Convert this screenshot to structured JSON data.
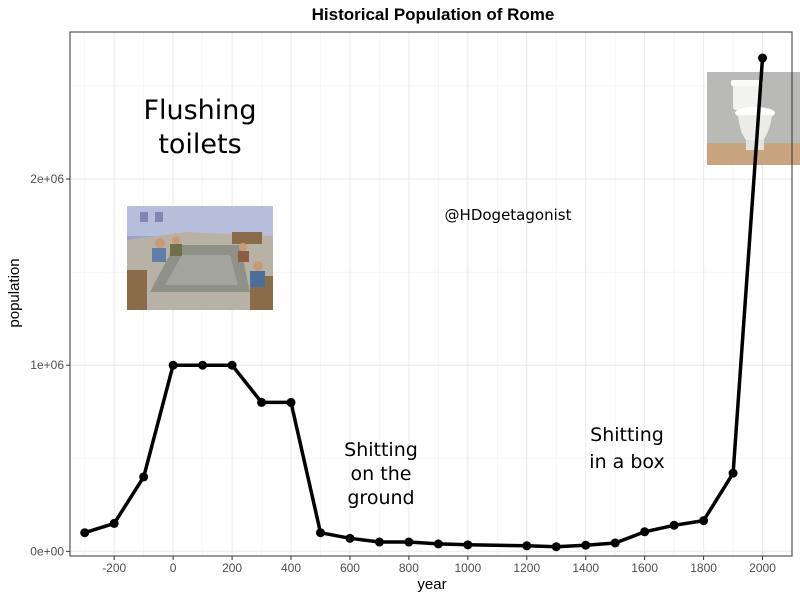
{
  "chart_data": {
    "type": "line",
    "title": "Historical Population of Rome",
    "xlabel": "year",
    "ylabel": "population",
    "xlim": [
      -350,
      2100
    ],
    "ylim": [
      -25000,
      2790000
    ],
    "x_ticks": [
      -200,
      0,
      200,
      400,
      600,
      800,
      1000,
      1200,
      1400,
      1600,
      1800,
      2000
    ],
    "x_tick_labels": [
      "-200",
      "0",
      "200",
      "400",
      "600",
      "800",
      "1000",
      "1200",
      "1400",
      "1600",
      "1800",
      "2000"
    ],
    "y_ticks": [
      0,
      1000000,
      2000000
    ],
    "y_tick_labels": [
      "0e+00",
      "1e+06",
      "2e+06"
    ],
    "grid": true,
    "legend": "none",
    "series": [
      {
        "color": "#000000",
        "x": [
          -300,
          -200,
          -100,
          0,
          100,
          200,
          300,
          400,
          500,
          600,
          700,
          800,
          900,
          1000,
          1200,
          1300,
          1400,
          1500,
          1600,
          1700,
          1800,
          1900,
          2000
        ],
        "y": [
          100000,
          150000,
          400000,
          1000000,
          1000000,
          1000000,
          800000,
          800000,
          100000,
          70000,
          50000,
          50000,
          40000,
          35000,
          30000,
          25000,
          33000,
          45000,
          105000,
          140000,
          165000,
          420000,
          2650000
        ]
      }
    ],
    "annotations": [
      {
        "lines": [
          "Flushing",
          "toilets"
        ]
      },
      {
        "lines": [
          "@HDogetagonist"
        ]
      },
      {
        "lines": [
          "Shitting",
          "on the",
          "ground"
        ]
      },
      {
        "lines": [
          "Shitting",
          "in a box"
        ]
      }
    ]
  },
  "images": {
    "roman_latrine": "roman-latrine-painting",
    "modern_toilet": "modern-toilet-photo"
  }
}
